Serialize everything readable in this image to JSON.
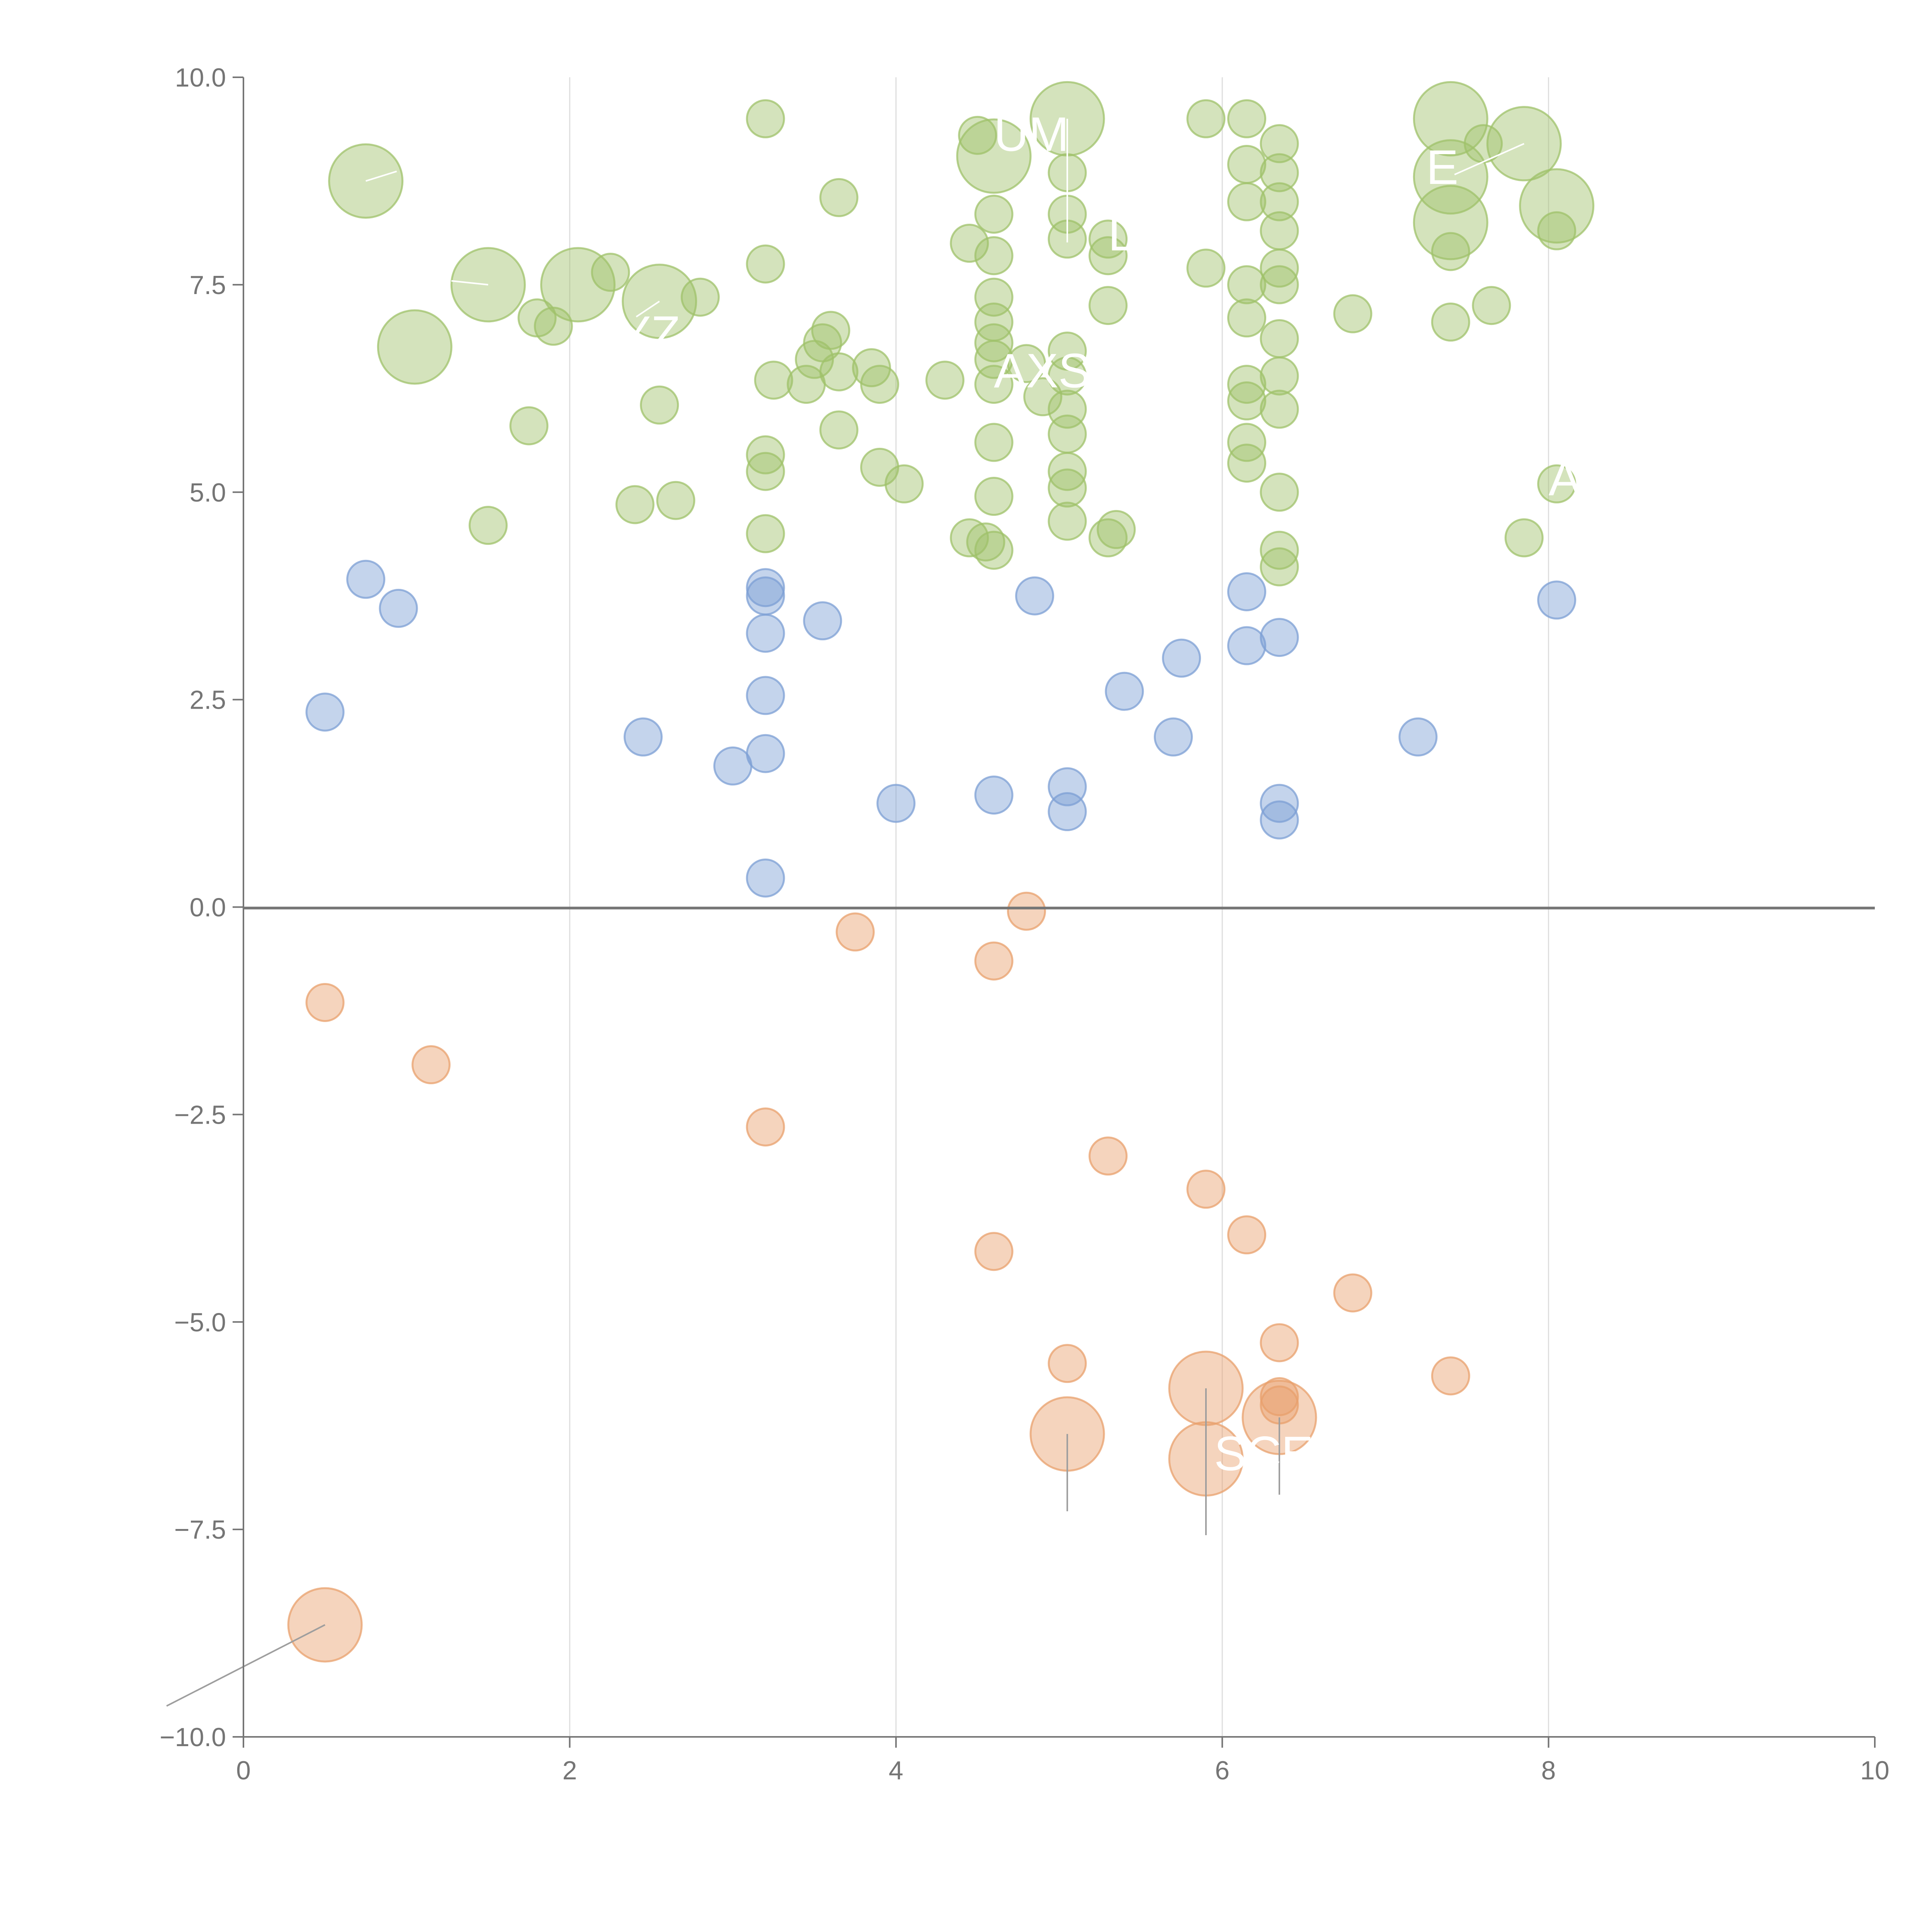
{
  "chart_data": {
    "type": "scatter",
    "title": "",
    "xlabel": "",
    "ylabel": "",
    "xlim": [
      0,
      10
    ],
    "ylim": [
      -10,
      10
    ],
    "x_ticks": [
      "0",
      "2",
      "4",
      "6",
      "8",
      "10"
    ],
    "y_ticks": [
      "10.0",
      "7.5",
      "5.0",
      "2.5",
      "0.0",
      "−2.5",
      "−5.0",
      "−7.5",
      "−10.0"
    ],
    "grid": "vertical",
    "colors": {
      "green": "#9fc26a",
      "blue": "#7c9fd4",
      "orange": "#e8a06c",
      "axis": "#757575",
      "grid": "#dedede",
      "label": "#ffffff"
    },
    "series": [
      {
        "name": "green",
        "color": "#9fc26a",
        "points": [
          [
            0.75,
            8.75,
            2
          ],
          [
            1.05,
            6.75,
            2
          ],
          [
            1.5,
            7.5,
            2
          ],
          [
            2.05,
            7.5,
            2
          ],
          [
            2.55,
            7.3,
            2
          ],
          [
            4.6,
            9.05,
            2
          ],
          [
            5.05,
            9.5,
            2
          ],
          [
            7.4,
            9.5,
            2
          ],
          [
            7.4,
            8.8,
            2
          ],
          [
            7.4,
            8.25,
            2
          ],
          [
            7.85,
            9.2,
            2
          ],
          [
            8.05,
            8.45,
            2
          ],
          [
            3.2,
            9.5,
            1
          ],
          [
            3.65,
            8.55,
            1
          ],
          [
            4.5,
            9.3,
            1
          ],
          [
            5.9,
            9.5,
            1
          ],
          [
            6.15,
            9.5,
            1
          ],
          [
            6.15,
            8.95,
            1
          ],
          [
            6.15,
            8.5,
            1
          ],
          [
            6.35,
            9.2,
            1
          ],
          [
            6.35,
            8.85,
            1
          ],
          [
            6.35,
            8.5,
            1
          ],
          [
            6.35,
            8.15,
            1
          ],
          [
            7.6,
            9.2,
            1
          ],
          [
            8.05,
            8.15,
            1
          ],
          [
            3.2,
            7.75,
            1
          ],
          [
            2.25,
            7.65,
            1
          ],
          [
            1.8,
            7.1,
            1
          ],
          [
            1.9,
            7.0,
            1
          ],
          [
            2.8,
            7.35,
            1
          ],
          [
            4.45,
            8.0,
            1
          ],
          [
            4.6,
            8.35,
            1
          ],
          [
            4.6,
            7.85,
            1
          ],
          [
            5.05,
            8.85,
            1
          ],
          [
            5.05,
            8.35,
            1
          ],
          [
            5.05,
            8.05,
            1
          ],
          [
            5.3,
            7.85,
            1
          ],
          [
            5.3,
            8.05,
            1
          ],
          [
            5.9,
            7.7,
            1
          ],
          [
            6.15,
            7.5,
            1
          ],
          [
            6.15,
            7.1,
            1
          ],
          [
            6.35,
            7.7,
            1
          ],
          [
            6.35,
            7.5,
            1
          ],
          [
            6.8,
            7.15,
            1
          ],
          [
            7.4,
            7.05,
            1
          ],
          [
            7.65,
            7.25,
            1
          ],
          [
            7.4,
            7.9,
            1
          ],
          [
            3.25,
            6.35,
            1
          ],
          [
            3.45,
            6.3,
            1
          ],
          [
            3.5,
            6.6,
            1
          ],
          [
            3.55,
            6.8,
            1
          ],
          [
            3.6,
            6.95,
            1
          ],
          [
            3.65,
            6.45,
            1
          ],
          [
            3.85,
            6.5,
            1
          ],
          [
            3.9,
            6.3,
            1
          ],
          [
            4.3,
            6.35,
            1
          ],
          [
            4.6,
            7.35,
            1
          ],
          [
            4.6,
            7.05,
            1
          ],
          [
            4.6,
            6.8,
            1
          ],
          [
            4.6,
            6.6,
            1
          ],
          [
            4.6,
            6.3,
            1
          ],
          [
            4.8,
            6.55,
            1
          ],
          [
            4.9,
            6.15,
            1
          ],
          [
            5.05,
            6.7,
            1
          ],
          [
            5.05,
            6.4,
            1
          ],
          [
            5.05,
            6.0,
            1
          ],
          [
            5.05,
            5.7,
            1
          ],
          [
            5.3,
            7.25,
            1
          ],
          [
            6.15,
            6.3,
            1
          ],
          [
            6.15,
            6.1,
            1
          ],
          [
            6.35,
            6.85,
            1
          ],
          [
            6.35,
            6.4,
            1
          ],
          [
            6.35,
            6.0,
            1
          ],
          [
            2.55,
            6.05,
            1
          ],
          [
            1.75,
            5.8,
            1
          ],
          [
            3.2,
            5.45,
            1
          ],
          [
            3.2,
            5.25,
            1
          ],
          [
            3.65,
            5.75,
            1
          ],
          [
            3.9,
            5.3,
            1
          ],
          [
            4.05,
            5.1,
            1
          ],
          [
            4.6,
            5.6,
            1
          ],
          [
            5.05,
            5.25,
            1
          ],
          [
            5.05,
            5.05,
            1
          ],
          [
            6.15,
            5.6,
            1
          ],
          [
            6.15,
            5.35,
            1
          ],
          [
            2.4,
            4.85,
            1
          ],
          [
            2.65,
            4.9,
            1
          ],
          [
            1.5,
            4.6,
            1
          ],
          [
            3.2,
            4.5,
            1
          ],
          [
            4.45,
            4.45,
            1
          ],
          [
            4.55,
            4.4,
            1
          ],
          [
            4.6,
            4.3,
            1
          ],
          [
            4.6,
            4.95,
            1
          ],
          [
            5.05,
            4.65,
            1
          ],
          [
            5.3,
            4.45,
            1
          ],
          [
            5.35,
            4.55,
            1
          ],
          [
            6.35,
            5.0,
            1
          ],
          [
            6.35,
            4.3,
            1
          ],
          [
            6.35,
            4.1,
            1
          ],
          [
            7.85,
            4.45,
            1
          ],
          [
            8.05,
            5.1,
            1
          ]
        ]
      },
      {
        "name": "blue",
        "color": "#7c9fd4",
        "points": [
          [
            0.75,
            3.95,
            1
          ],
          [
            0.95,
            3.6,
            1
          ],
          [
            0.5,
            2.35,
            1
          ],
          [
            2.45,
            2.05,
            1
          ],
          [
            3.0,
            1.7,
            1
          ],
          [
            3.2,
            3.85,
            1
          ],
          [
            3.2,
            3.75,
            1
          ],
          [
            3.2,
            3.3,
            1
          ],
          [
            3.2,
            2.55,
            1
          ],
          [
            3.2,
            1.85,
            1
          ],
          [
            3.2,
            0.35,
            1
          ],
          [
            3.55,
            3.45,
            1
          ],
          [
            4.0,
            1.25,
            1
          ],
          [
            4.6,
            1.35,
            1
          ],
          [
            4.85,
            3.75,
            1
          ],
          [
            5.05,
            1.45,
            1
          ],
          [
            5.05,
            1.15,
            1
          ],
          [
            5.4,
            2.6,
            1
          ],
          [
            5.7,
            2.05,
            1
          ],
          [
            5.75,
            3.0,
            1
          ],
          [
            6.15,
            3.8,
            1
          ],
          [
            6.15,
            3.15,
            1
          ],
          [
            6.35,
            3.25,
            1
          ],
          [
            6.35,
            1.25,
            1
          ],
          [
            6.35,
            1.05,
            1
          ],
          [
            7.2,
            2.05,
            1
          ],
          [
            8.05,
            3.7,
            1
          ]
        ]
      },
      {
        "name": "orange",
        "color": "#e8a06c",
        "points": [
          [
            0.5,
            -1.15,
            1
          ],
          [
            1.15,
            -1.9,
            1
          ],
          [
            3.75,
            -0.3,
            1
          ],
          [
            4.6,
            -0.65,
            1
          ],
          [
            4.8,
            -0.05,
            1
          ],
          [
            3.2,
            -2.65,
            1
          ],
          [
            5.3,
            -3.0,
            1
          ],
          [
            5.9,
            -3.4,
            1
          ],
          [
            6.15,
            -3.95,
            1
          ],
          [
            4.6,
            -4.15,
            1
          ],
          [
            6.8,
            -4.65,
            1
          ],
          [
            6.35,
            -5.25,
            1
          ],
          [
            7.4,
            -5.65,
            1
          ],
          [
            5.05,
            -5.5,
            1
          ],
          [
            6.35,
            -5.9,
            1
          ],
          [
            6.35,
            -6.0,
            1
          ],
          [
            5.9,
            -5.8,
            2
          ],
          [
            6.35,
            -6.15,
            2
          ],
          [
            5.05,
            -6.35,
            2
          ],
          [
            5.9,
            -6.65,
            2
          ],
          [
            0.5,
            -8.65,
            2
          ]
        ]
      }
    ],
    "labels": [
      {
        "text": "UM",
        "series": "green",
        "x": 4.6,
        "y": 9.3
      },
      {
        "text": "E",
        "series": "green",
        "x": 7.25,
        "y": 8.9
      },
      {
        "text": "YZ",
        "series": "green",
        "x": 2.3,
        "y": 6.9
      },
      {
        "text": "L",
        "series": "green",
        "x": 5.3,
        "y": 8.1
      },
      {
        "text": "AXS",
        "series": "green",
        "x": 4.6,
        "y": 6.45
      },
      {
        "text": "A",
        "series": "green",
        "x": 8.0,
        "y": 5.15
      },
      {
        "text": "SCE",
        "series": "orange",
        "x": 5.95,
        "y": -6.6
      }
    ]
  }
}
